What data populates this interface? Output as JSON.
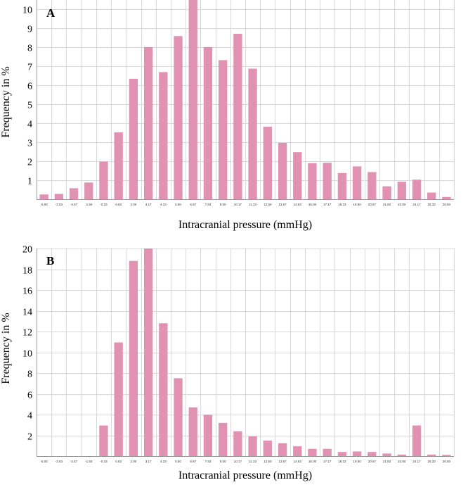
{
  "chart_data": [
    {
      "type": "bar",
      "panel_label": "A",
      "xlabel": "Intracranial pressure (mmHg)",
      "ylabel": "Frequency in %",
      "ylim": [
        0,
        10.5
      ],
      "yticks": [
        1,
        2,
        3,
        4,
        5,
        6,
        7,
        8,
        9,
        10
      ],
      "grid": true,
      "categories": [
        "-5.00",
        "-3.83",
        "-2.67",
        "-1.50",
        "-0.33",
        "0.83",
        "2.00",
        "3.17",
        "4.33",
        "5.50",
        "6.67",
        "7.83",
        "9.00",
        "10.17",
        "11.33",
        "12.50",
        "13.67",
        "14.83",
        "16.00",
        "17.17",
        "18.33",
        "19.50",
        "20.67",
        "21.83",
        "23.00",
        "24.17",
        "25.33",
        "26.50"
      ],
      "values": [
        0.25,
        0.28,
        0.58,
        0.88,
        1.98,
        3.52,
        6.35,
        8.02,
        6.7,
        8.6,
        10.5,
        8.02,
        7.33,
        8.72,
        6.88,
        3.82,
        2.97,
        2.48,
        1.9,
        1.92,
        1.38,
        1.73,
        1.43,
        0.68,
        0.92,
        1.03,
        0.35,
        0.12
      ]
    },
    {
      "type": "bar",
      "panel_label": "B",
      "xlabel": "Intracranial pressure (mmHg)",
      "ylabel": "Frequency in %",
      "ylim": [
        0,
        20
      ],
      "yticks": [
        2,
        4,
        6,
        8,
        10,
        12,
        14,
        16,
        18,
        20
      ],
      "grid": true,
      "categories": [
        "-5.00",
        "-3.83",
        "-2.67",
        "-1.50",
        "-0.33",
        "0.83",
        "2.00",
        "3.17",
        "4.33",
        "5.50",
        "6.67",
        "7.83",
        "9.00",
        "10.17",
        "11.33",
        "12.50",
        "13.67",
        "14.83",
        "16.00",
        "17.17",
        "18.33",
        "19.50",
        "20.67",
        "21.83",
        "23.00",
        "24.17",
        "25.33",
        "26.50"
      ],
      "values": [
        0,
        0,
        0,
        0,
        2.95,
        10.95,
        18.8,
        20.0,
        12.8,
        7.5,
        4.7,
        4.0,
        3.2,
        2.4,
        1.9,
        1.5,
        1.25,
        0.95,
        0.7,
        0.7,
        0.4,
        0.45,
        0.4,
        0.25,
        0.15,
        2.95,
        0.15,
        0.12
      ]
    }
  ]
}
